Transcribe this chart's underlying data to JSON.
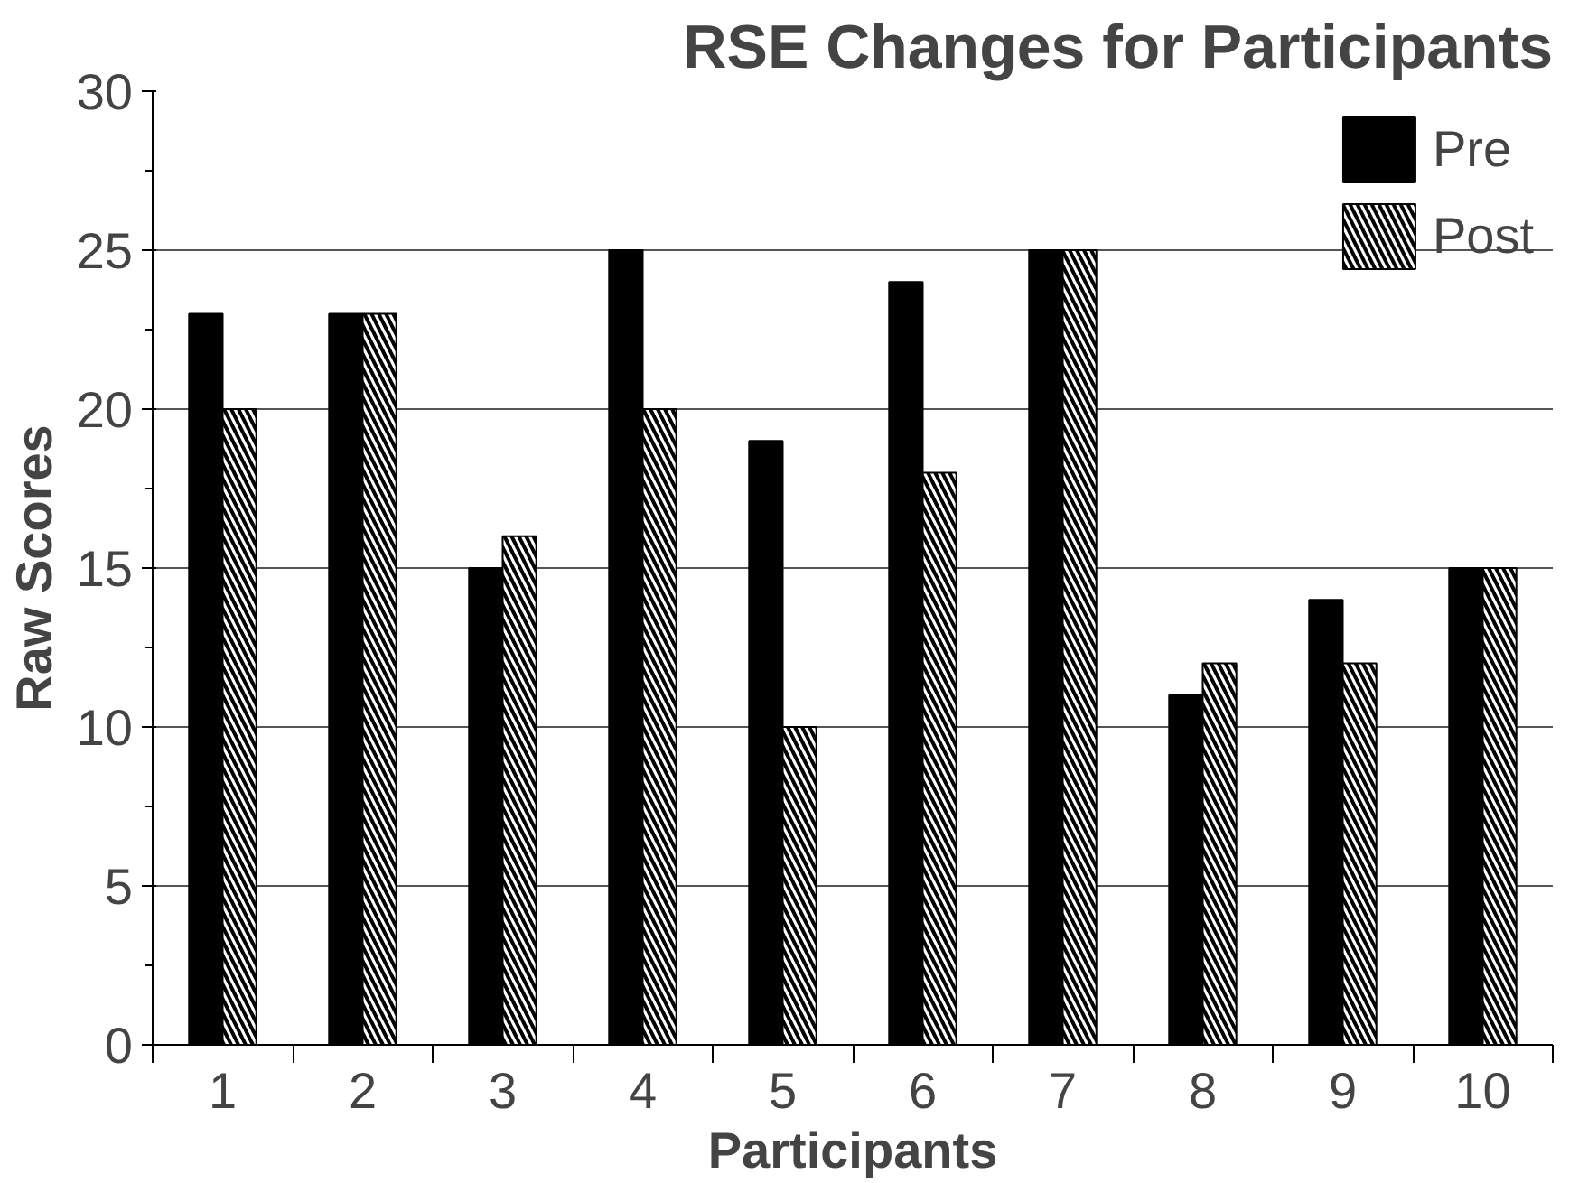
{
  "chart_data": {
    "type": "bar",
    "title": "RSE Changes for Participants",
    "xlabel": "Participants",
    "ylabel": "Raw Scores",
    "categories": [
      "1",
      "2",
      "3",
      "4",
      "5",
      "6",
      "7",
      "8",
      "9",
      "10"
    ],
    "series": [
      {
        "name": "Pre",
        "color": "#000000",
        "values": [
          23,
          23,
          15,
          25,
          19,
          24,
          25,
          11,
          14,
          15
        ]
      },
      {
        "name": "Post",
        "color": "#ffffff",
        "values": [
          20,
          23,
          16,
          20,
          10,
          18,
          25,
          12,
          12,
          15
        ]
      }
    ],
    "ylim": [
      0,
      30
    ],
    "yticks": [
      0,
      5,
      10,
      15,
      20,
      25,
      30
    ],
    "grid": "y",
    "legend": "top right"
  }
}
